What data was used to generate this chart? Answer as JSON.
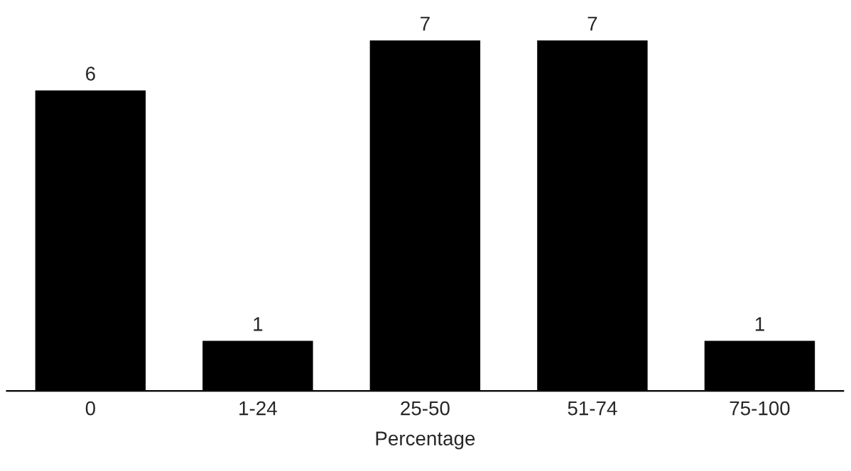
{
  "chart_data": {
    "type": "bar",
    "xlabel": "Percentage",
    "categories": [
      "0",
      "1-24",
      "25-50",
      "51-74",
      "75-100"
    ],
    "values": [
      6,
      1,
      7,
      7,
      1
    ],
    "color": "#000000",
    "data_labels": true,
    "grid": false,
    "legend": false,
    "tick_labels": "x"
  }
}
